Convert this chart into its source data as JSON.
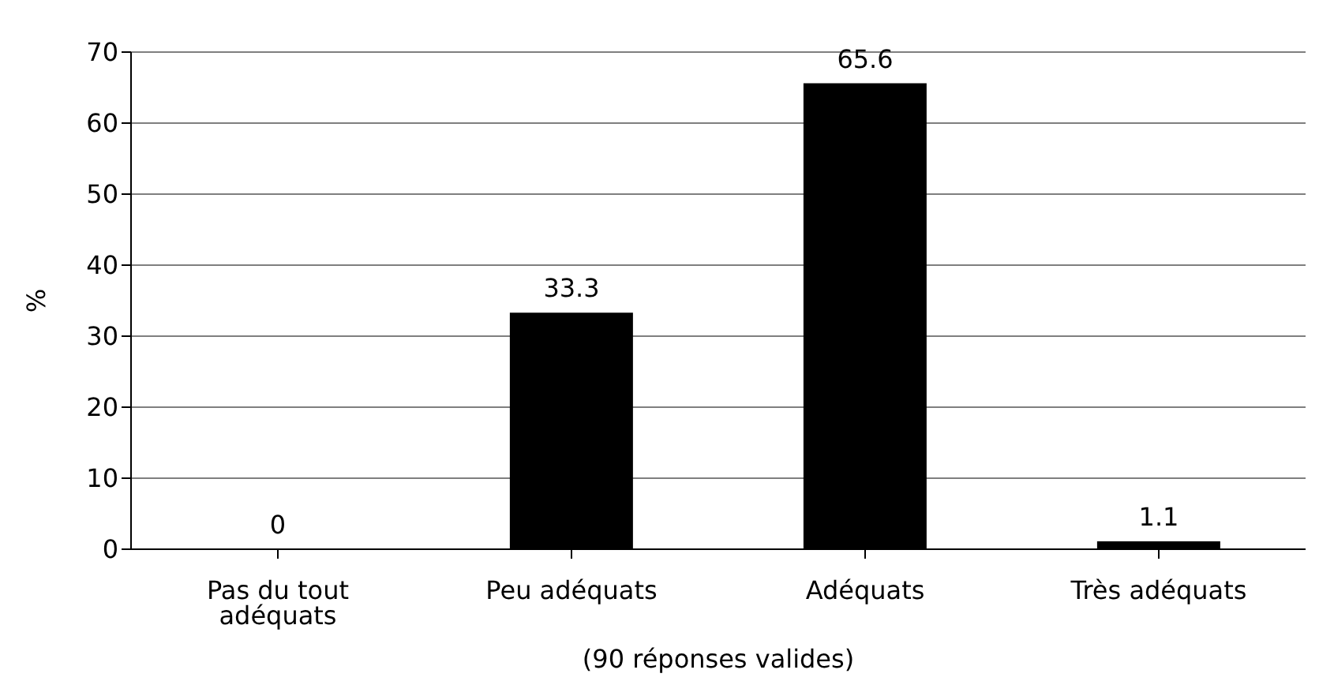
{
  "chart_data": {
    "type": "bar",
    "xlabel": "(90 réponses valides)",
    "ylabel": "%",
    "categories": [
      "Pas du tout adéquats",
      "Peu adéquats",
      "Adéquats",
      "Très adéquats"
    ],
    "values": [
      0,
      33.3,
      65.6,
      1.1
    ],
    "color": "#000000",
    "ylim": [
      0,
      70
    ],
    "yticks": [
      0,
      10,
      20,
      30,
      40,
      50,
      60,
      70
    ],
    "grid": "y",
    "legend": false,
    "data_labels": true
  }
}
